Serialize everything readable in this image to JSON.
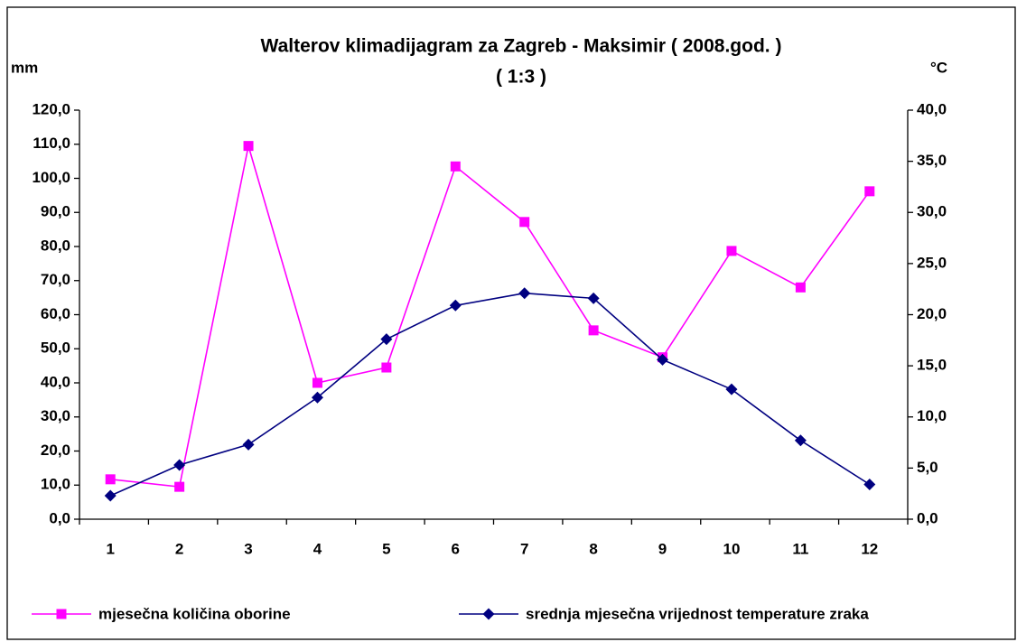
{
  "chart_data": {
    "type": "line",
    "title": "Walterov klimadijagram za Zagreb - Maksimir ( 2008.god. )",
    "subtitle": "( 1:3 )",
    "y_label": "mm",
    "y2_label": "°C",
    "categories": [
      "1",
      "2",
      "3",
      "4",
      "5",
      "6",
      "7",
      "8",
      "9",
      "10",
      "11",
      "12"
    ],
    "ylim": [
      0,
      120
    ],
    "yticks": [
      {
        "value": 0,
        "label": "0,0"
      },
      {
        "value": 10,
        "label": "10,0"
      },
      {
        "value": 20,
        "label": "20,0"
      },
      {
        "value": 30,
        "label": "30,0"
      },
      {
        "value": 40,
        "label": "40,0"
      },
      {
        "value": 50,
        "label": "50,0"
      },
      {
        "value": 60,
        "label": "60,0"
      },
      {
        "value": 70,
        "label": "70,0"
      },
      {
        "value": 80,
        "label": "80,0"
      },
      {
        "value": 90,
        "label": "90,0"
      },
      {
        "value": 100,
        "label": "100,0"
      },
      {
        "value": 110,
        "label": "110,0"
      },
      {
        "value": 120,
        "label": "120,0"
      }
    ],
    "y2lim": [
      0,
      40
    ],
    "y2ticks": [
      {
        "value": 0,
        "label": "0,0"
      },
      {
        "value": 5,
        "label": "5,0"
      },
      {
        "value": 10,
        "label": "10,0"
      },
      {
        "value": 15,
        "label": "15,0"
      },
      {
        "value": 20,
        "label": "20,0"
      },
      {
        "value": 25,
        "label": "25,0"
      },
      {
        "value": 30,
        "label": "30,0"
      },
      {
        "value": 35,
        "label": "35,0"
      },
      {
        "value": 40,
        "label": "40,0"
      }
    ],
    "grid": false,
    "legend": "bottom",
    "series": [
      {
        "name": "mjesečna količina oborine",
        "color": "#ff00ff",
        "marker": "square",
        "axis": "y",
        "values": [
          11.7,
          9.5,
          109.5,
          40,
          44.5,
          103.5,
          87.2,
          55.4,
          47.5,
          78.7,
          68,
          96.2
        ]
      },
      {
        "name": "srednja mjesečna vrijednost temperature zraka",
        "color": "#000080",
        "marker": "diamond",
        "axis": "y2",
        "values": [
          2.3,
          5.3,
          7.3,
          11.9,
          17.6,
          20.9,
          22.1,
          21.6,
          15.6,
          12.7,
          7.7,
          3.4
        ]
      }
    ]
  }
}
